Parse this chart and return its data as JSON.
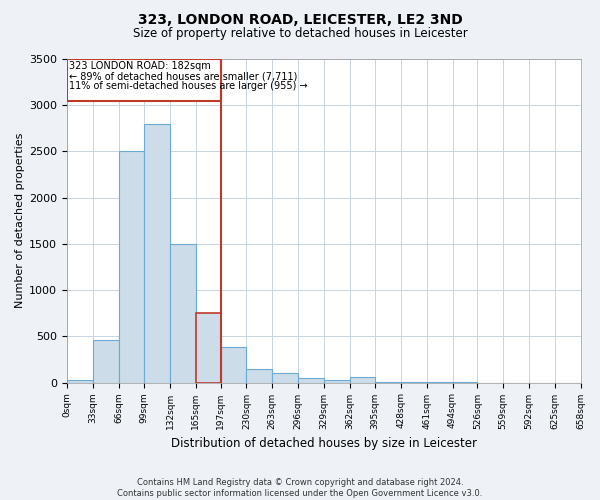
{
  "title": "323, LONDON ROAD, LEICESTER, LE2 3ND",
  "subtitle": "Size of property relative to detached houses in Leicester",
  "xlabel": "Distribution of detached houses by size in Leicester",
  "ylabel": "Number of detached properties",
  "footer_line1": "Contains HM Land Registry data © Crown copyright and database right 2024.",
  "footer_line2": "Contains public sector information licensed under the Open Government Licence v3.0.",
  "annotation_line1": "323 LONDON ROAD: 182sqm",
  "annotation_line2": "← 89% of detached houses are smaller (7,711)",
  "annotation_line3": "11% of semi-detached houses are larger (955) →",
  "bar_edges": [
    0,
    33,
    66,
    99,
    132,
    165,
    197,
    230,
    263,
    296,
    329,
    362,
    395,
    428,
    461,
    494,
    526,
    559,
    592,
    625,
    658
  ],
  "bar_heights": [
    30,
    460,
    2500,
    2800,
    1500,
    750,
    380,
    150,
    100,
    50,
    30,
    55,
    10,
    5,
    2,
    1,
    0,
    0,
    0,
    0
  ],
  "highlight_bin_index": 5,
  "property_value": 182,
  "bar_color": "#ccdce8",
  "bar_edge_color": "#6aaad4",
  "highlight_bar_edge_color": "#c0392b",
  "vline_color": "#c0392b",
  "annotation_box_color": "#c0392b",
  "background_color": "#eef2f7",
  "plot_bg_color": "#ffffff",
  "ylim": [
    0,
    3500
  ],
  "yticks": [
    0,
    500,
    1000,
    1500,
    2000,
    2500,
    3000,
    3500
  ]
}
